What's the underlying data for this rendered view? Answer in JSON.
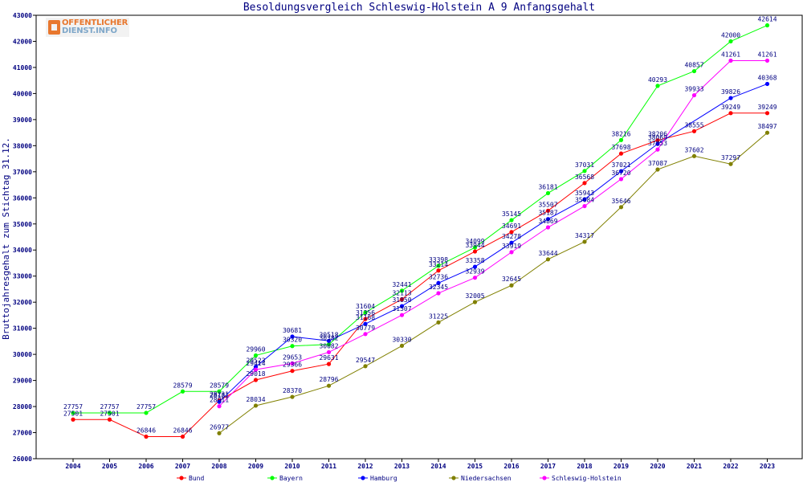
{
  "logo": {
    "line1": "OFFENTLICHER",
    "line2": "DIENST.INFO"
  },
  "colors": {
    "text": "#000080",
    "grid": "#000000",
    "Bund": "#ff0000",
    "Bayern": "#00ff00",
    "Hamburg": "#0000ff",
    "Niedersachsen": "#808000",
    "Schleswig-Holstein": "#ff00ff"
  },
  "chart_data": {
    "type": "line",
    "title": "Besoldungsvergleich Schleswig-Holstein A 9 Anfangsgehalt",
    "xlabel": "",
    "ylabel": "Bruttojahresgehalt zum Stichtag 31.12.",
    "categories": [
      "2004",
      "2005",
      "2006",
      "2007",
      "2008",
      "2009",
      "2010",
      "2011",
      "2012",
      "2013",
      "2014",
      "2015",
      "2016",
      "2017",
      "2018",
      "2019",
      "2020",
      "2021",
      "2022",
      "2023"
    ],
    "ylim": [
      26000,
      43000
    ],
    "yticks": [
      26000,
      27000,
      28000,
      29000,
      30000,
      31000,
      32000,
      33000,
      34000,
      35000,
      36000,
      37000,
      38000,
      39000,
      40000,
      41000,
      42000,
      43000
    ],
    "grid": false,
    "legend_position": "bottom",
    "series": [
      {
        "name": "Bund",
        "color": "#ff0000",
        "values": [
          27501,
          27501,
          26846,
          26846,
          28231,
          29018,
          29366,
          29631,
          31356,
          32113,
          33214,
          33944,
          34691,
          35507,
          36568,
          37698,
          38206,
          38555,
          39249,
          39249
        ]
      },
      {
        "name": "Bayern",
        "color": "#00ff00",
        "values": [
          27757,
          27757,
          27757,
          28579,
          28579,
          29960,
          30320,
          30382,
          31604,
          32441,
          33398,
          34099,
          35145,
          36181,
          37031,
          38216,
          40293,
          40857,
          42000,
          42614
        ]
      },
      {
        "name": "Hamburg",
        "color": "#0000ff",
        "values": [
          null,
          null,
          null,
          null,
          28181,
          29523,
          30681,
          30518,
          31168,
          31850,
          32736,
          33358,
          34278,
          35187,
          35943,
          37021,
          38069,
          null,
          39826,
          40368
        ]
      },
      {
        "name": "Niedersachsen",
        "color": "#808000",
        "values": [
          null,
          null,
          null,
          null,
          26977,
          28034,
          28370,
          28796,
          29547,
          30330,
          31225,
          32005,
          32645,
          33644,
          34317,
          35646,
          37087,
          37602,
          37297,
          38497
        ]
      },
      {
        "name": "Schleswig-Holstein",
        "color": "#ff00ff",
        "values": [
          null,
          null,
          null,
          null,
          28011,
          29414,
          29653,
          30082,
          30779,
          31507,
          32345,
          32939,
          33919,
          34869,
          35684,
          36720,
          37853,
          39933,
          41261,
          41261
        ]
      }
    ]
  }
}
